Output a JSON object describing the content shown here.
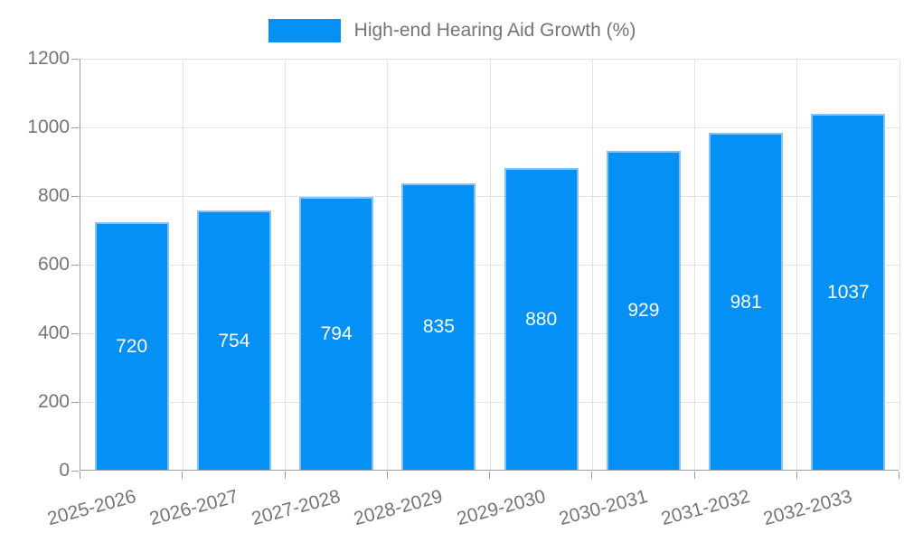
{
  "legend": {
    "label": "High-end Hearing Aid Growth (%)"
  },
  "colors": {
    "bar": "#0590f5",
    "bar_border": "#85c2f8",
    "axis": "#9e9e9e",
    "grid": "#e3e3e3",
    "text": "#757575",
    "value_label": "#ffffff",
    "background": "#ffffff"
  },
  "chart_data": {
    "type": "bar",
    "title": "High-end Hearing Aid Growth (%)",
    "categories": [
      "2025-2026",
      "2026-2027",
      "2027-2028",
      "2028-2029",
      "2029-2030",
      "2030-2031",
      "2031-2032",
      "2032-2033"
    ],
    "series": [
      {
        "name": "High-end Hearing Aid Growth (%)",
        "values": [
          720,
          754,
          794,
          835,
          880,
          929,
          981,
          1037
        ]
      }
    ],
    "value_labels_shown": true,
    "value_label_position": "inside-middle",
    "xlabel": "",
    "ylabel": "",
    "ylim": [
      0,
      1200
    ],
    "yticks": [
      0,
      200,
      400,
      600,
      800,
      1000,
      1200
    ],
    "x_label_rotation_deg": -15,
    "grid": true,
    "legend_position": "top-center"
  }
}
